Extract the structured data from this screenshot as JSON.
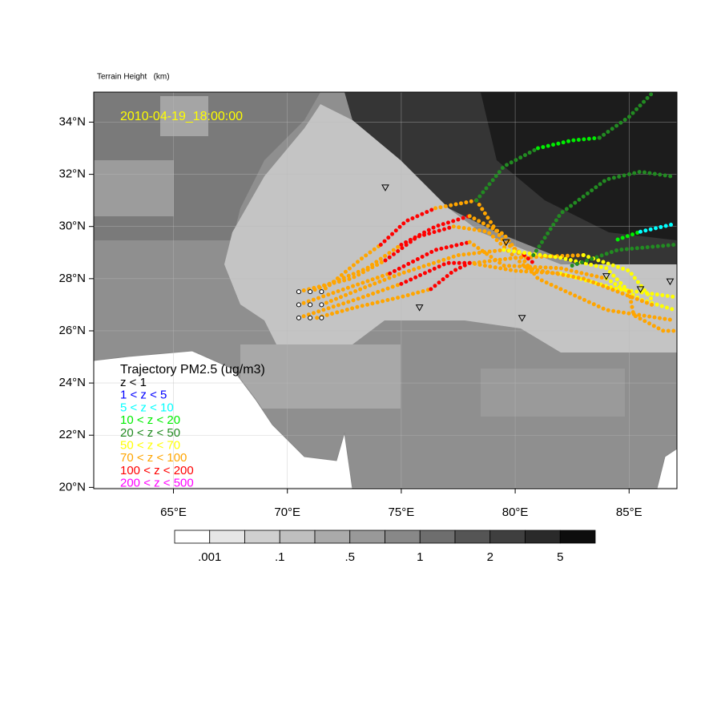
{
  "title": "Terrain Height   (km)",
  "date_label": "2010-04-19_18:00:00",
  "map": {
    "lonlim": [
      61.5,
      87.1
    ],
    "latlim": [
      19.95,
      35.15
    ],
    "lonticks": [
      {
        "value": 65,
        "label": "65°E"
      },
      {
        "value": 70,
        "label": "70°E"
      },
      {
        "value": 75,
        "label": "75°E"
      },
      {
        "value": 80,
        "label": "80°E"
      },
      {
        "value": 85,
        "label": "85°E"
      }
    ],
    "latticks": [
      {
        "value": 20,
        "label": "20°N"
      },
      {
        "value": 22,
        "label": "22°N"
      },
      {
        "value": 24,
        "label": "24°N"
      },
      {
        "value": 26,
        "label": "26°N"
      },
      {
        "value": 28,
        "label": "28°N"
      },
      {
        "value": 30,
        "label": "30°N"
      },
      {
        "value": 32,
        "label": "32°N"
      },
      {
        "value": 34,
        "label": "34°N"
      }
    ],
    "grid": true
  },
  "colorbar": {
    "colors": [
      "#ffffff",
      "#e6e6e6",
      "#d0d0d0",
      "#bfbfbf",
      "#aaaaaa",
      "#999999",
      "#888888",
      "#6e6e6e",
      "#555555",
      "#3f3f3f",
      "#2a2a2a",
      "#0d0d0d"
    ],
    "labels": [
      ".001",
      null,
      ".1",
      null,
      ".5",
      null,
      "1",
      null,
      "2",
      null,
      "5"
    ]
  },
  "legend": {
    "title": "Trajectory PM2.5 (ug/m3)",
    "entries": [
      {
        "label": "z < 1",
        "color": "#000000"
      },
      {
        "label": "1 < z < 5",
        "color": "#0000ff"
      },
      {
        "label": "5 < z < 10",
        "color": "#00ffff"
      },
      {
        "label": "10 < z < 20",
        "color": "#00ee00"
      },
      {
        "label": "20 < z < 50",
        "color": "#228b22"
      },
      {
        "label": "50 < z < 70",
        "color": "#ffff00"
      },
      {
        "label": "70 < z < 100",
        "color": "#ffa500"
      },
      {
        "label": "100 < z < 200",
        "color": "#ff0000"
      },
      {
        "label": "200 < z < 500",
        "color": "#ff00ff"
      }
    ]
  },
  "trajectories": [
    {
      "color": "#ffa500",
      "lon": [
        71.3,
        73,
        75,
        76.3
      ],
      "lat": [
        26.5,
        26.9,
        27.3,
        27.6
      ]
    },
    {
      "color": "#ff0000",
      "lon": [
        76.3,
        77.3,
        78
      ],
      "lat": [
        27.6,
        28.3,
        28.6
      ]
    },
    {
      "color": "#ffa500",
      "lon": [
        78,
        80,
        82
      ],
      "lat": [
        28.6,
        28.3,
        28.2
      ]
    },
    {
      "color": "#ffff00",
      "lon": [
        82,
        84.5,
        87
      ],
      "lat": [
        28.2,
        27.6,
        27.3
      ]
    },
    {
      "color": "#ffa500",
      "lon": [
        70.5,
        73,
        75
      ],
      "lat": [
        26.5,
        27.2,
        27.8
      ]
    },
    {
      "color": "#ff0000",
      "lon": [
        75,
        77,
        78.2
      ],
      "lat": [
        27.8,
        28.6,
        28.6
      ]
    },
    {
      "color": "#ffa500",
      "lon": [
        78.2,
        80,
        83
      ],
      "lat": [
        28.6,
        28.8,
        28.9
      ]
    },
    {
      "color": "#ffff00",
      "lon": [
        83,
        85,
        86
      ],
      "lat": [
        28.9,
        28.3,
        27.2
      ]
    },
    {
      "color": "#ffa500",
      "lon": [
        70.5,
        72.5,
        74.5
      ],
      "lat": [
        27,
        27.6,
        28.2
      ]
    },
    {
      "color": "#ff0000",
      "lon": [
        74.5,
        76.5,
        78
      ],
      "lat": [
        28.2,
        29.1,
        29.4
      ]
    },
    {
      "color": "#ffa500",
      "lon": [
        78,
        79.5,
        82,
        84
      ],
      "lat": [
        29.4,
        28.5,
        28.4,
        28
      ]
    },
    {
      "color": "#ffff00",
      "lon": [
        84,
        85.5,
        87
      ],
      "lat": [
        28,
        27.2,
        26.8
      ]
    },
    {
      "color": "#ffa500",
      "lon": [
        70.5,
        72.8,
        74.3
      ],
      "lat": [
        27.5,
        28,
        28.7
      ]
    },
    {
      "color": "#ff0000",
      "lon": [
        74.3,
        75.7,
        77.3
      ],
      "lat": [
        28.7,
        29.6,
        30
      ]
    },
    {
      "color": "#ffa500",
      "lon": [
        77.3,
        78.8,
        80.5,
        83,
        86
      ],
      "lat": [
        30,
        29.8,
        28.4,
        28,
        27
      ]
    },
    {
      "color": "#ffa500",
      "lon": [
        71,
        73.5,
        75
      ],
      "lat": [
        27.5,
        28.4,
        29.3
      ]
    },
    {
      "color": "#ff0000",
      "lon": [
        75,
        76.5,
        78
      ],
      "lat": [
        29.3,
        30,
        30.4
      ]
    },
    {
      "color": "#ffa500",
      "lon": [
        78,
        79.5,
        81,
        84,
        87
      ],
      "lat": [
        30.4,
        29.7,
        28,
        26.8,
        26.4
      ]
    },
    {
      "color": "#ffa500",
      "lon": [
        71.5,
        73.3,
        74.1
      ],
      "lat": [
        27.5,
        28.8,
        29.3
      ]
    },
    {
      "color": "#ff0000",
      "lon": [
        74.1,
        75.2,
        76.5
      ],
      "lat": [
        29.3,
        30.2,
        30.7
      ]
    },
    {
      "color": "#ffa500",
      "lon": [
        76.5,
        78.3,
        79.5,
        80.4
      ],
      "lat": [
        30.7,
        31,
        29.4,
        28.9
      ]
    },
    {
      "color": "#ff0000",
      "lon": [
        80.4,
        80.8
      ],
      "lat": [
        28.9,
        28.6
      ]
    },
    {
      "color": "#ffa500",
      "lon": [
        71.5,
        73.5,
        75,
        77.5,
        79.5
      ],
      "lat": [
        27,
        27.7,
        28.2,
        28.9,
        29.1
      ]
    },
    {
      "color": "#ffff00",
      "lon": [
        79.5,
        82,
        84,
        85
      ],
      "lat": [
        29.1,
        28.8,
        28.4,
        27.5
      ]
    },
    {
      "color": "#ffa500",
      "lon": [
        85,
        85.2,
        86.5,
        87
      ],
      "lat": [
        27.5,
        26.6,
        26,
        26
      ]
    },
    {
      "color": "#228b22",
      "lon": [
        78.3,
        79.5,
        81
      ],
      "lat": [
        31,
        32.3,
        33
      ]
    },
    {
      "color": "#00ee00",
      "lon": [
        81,
        82.5,
        83.7
      ],
      "lat": [
        33,
        33.3,
        33.4
      ]
    },
    {
      "color": "#228b22",
      "lon": [
        83.7,
        85,
        86
      ],
      "lat": [
        33.4,
        34.2,
        35.1
      ]
    },
    {
      "color": "#228b22",
      "lon": [
        80.8,
        82,
        84,
        85.5,
        87
      ],
      "lat": [
        28.9,
        30.5,
        31.8,
        32.1,
        31.9
      ]
    },
    {
      "color": "#228b22",
      "lon": [
        82.5,
        84.5,
        87
      ],
      "lat": [
        28.5,
        29.1,
        29.3
      ]
    },
    {
      "color": "#00ee00",
      "lon": [
        84.5,
        85.5
      ],
      "lat": [
        29.5,
        29.8
      ]
    },
    {
      "color": "#00ffff",
      "lon": [
        85.5,
        87
      ],
      "lat": [
        29.8,
        30.1
      ]
    }
  ],
  "stations": {
    "lon": [
      74.3,
      79.6,
      75.8,
      80.3,
      84,
      85.5,
      86.8
    ],
    "lat": [
      31.5,
      29.4,
      26.9,
      26.5,
      28.1,
      27.6,
      27.9
    ]
  },
  "sources": {
    "lon": [
      70.5,
      71,
      71.5,
      70.5,
      71,
      71.5,
      70.5,
      71,
      71.5
    ],
    "lat": [
      26.5,
      26.5,
      26.5,
      27,
      27,
      27,
      27.5,
      27.5,
      27.5
    ]
  }
}
